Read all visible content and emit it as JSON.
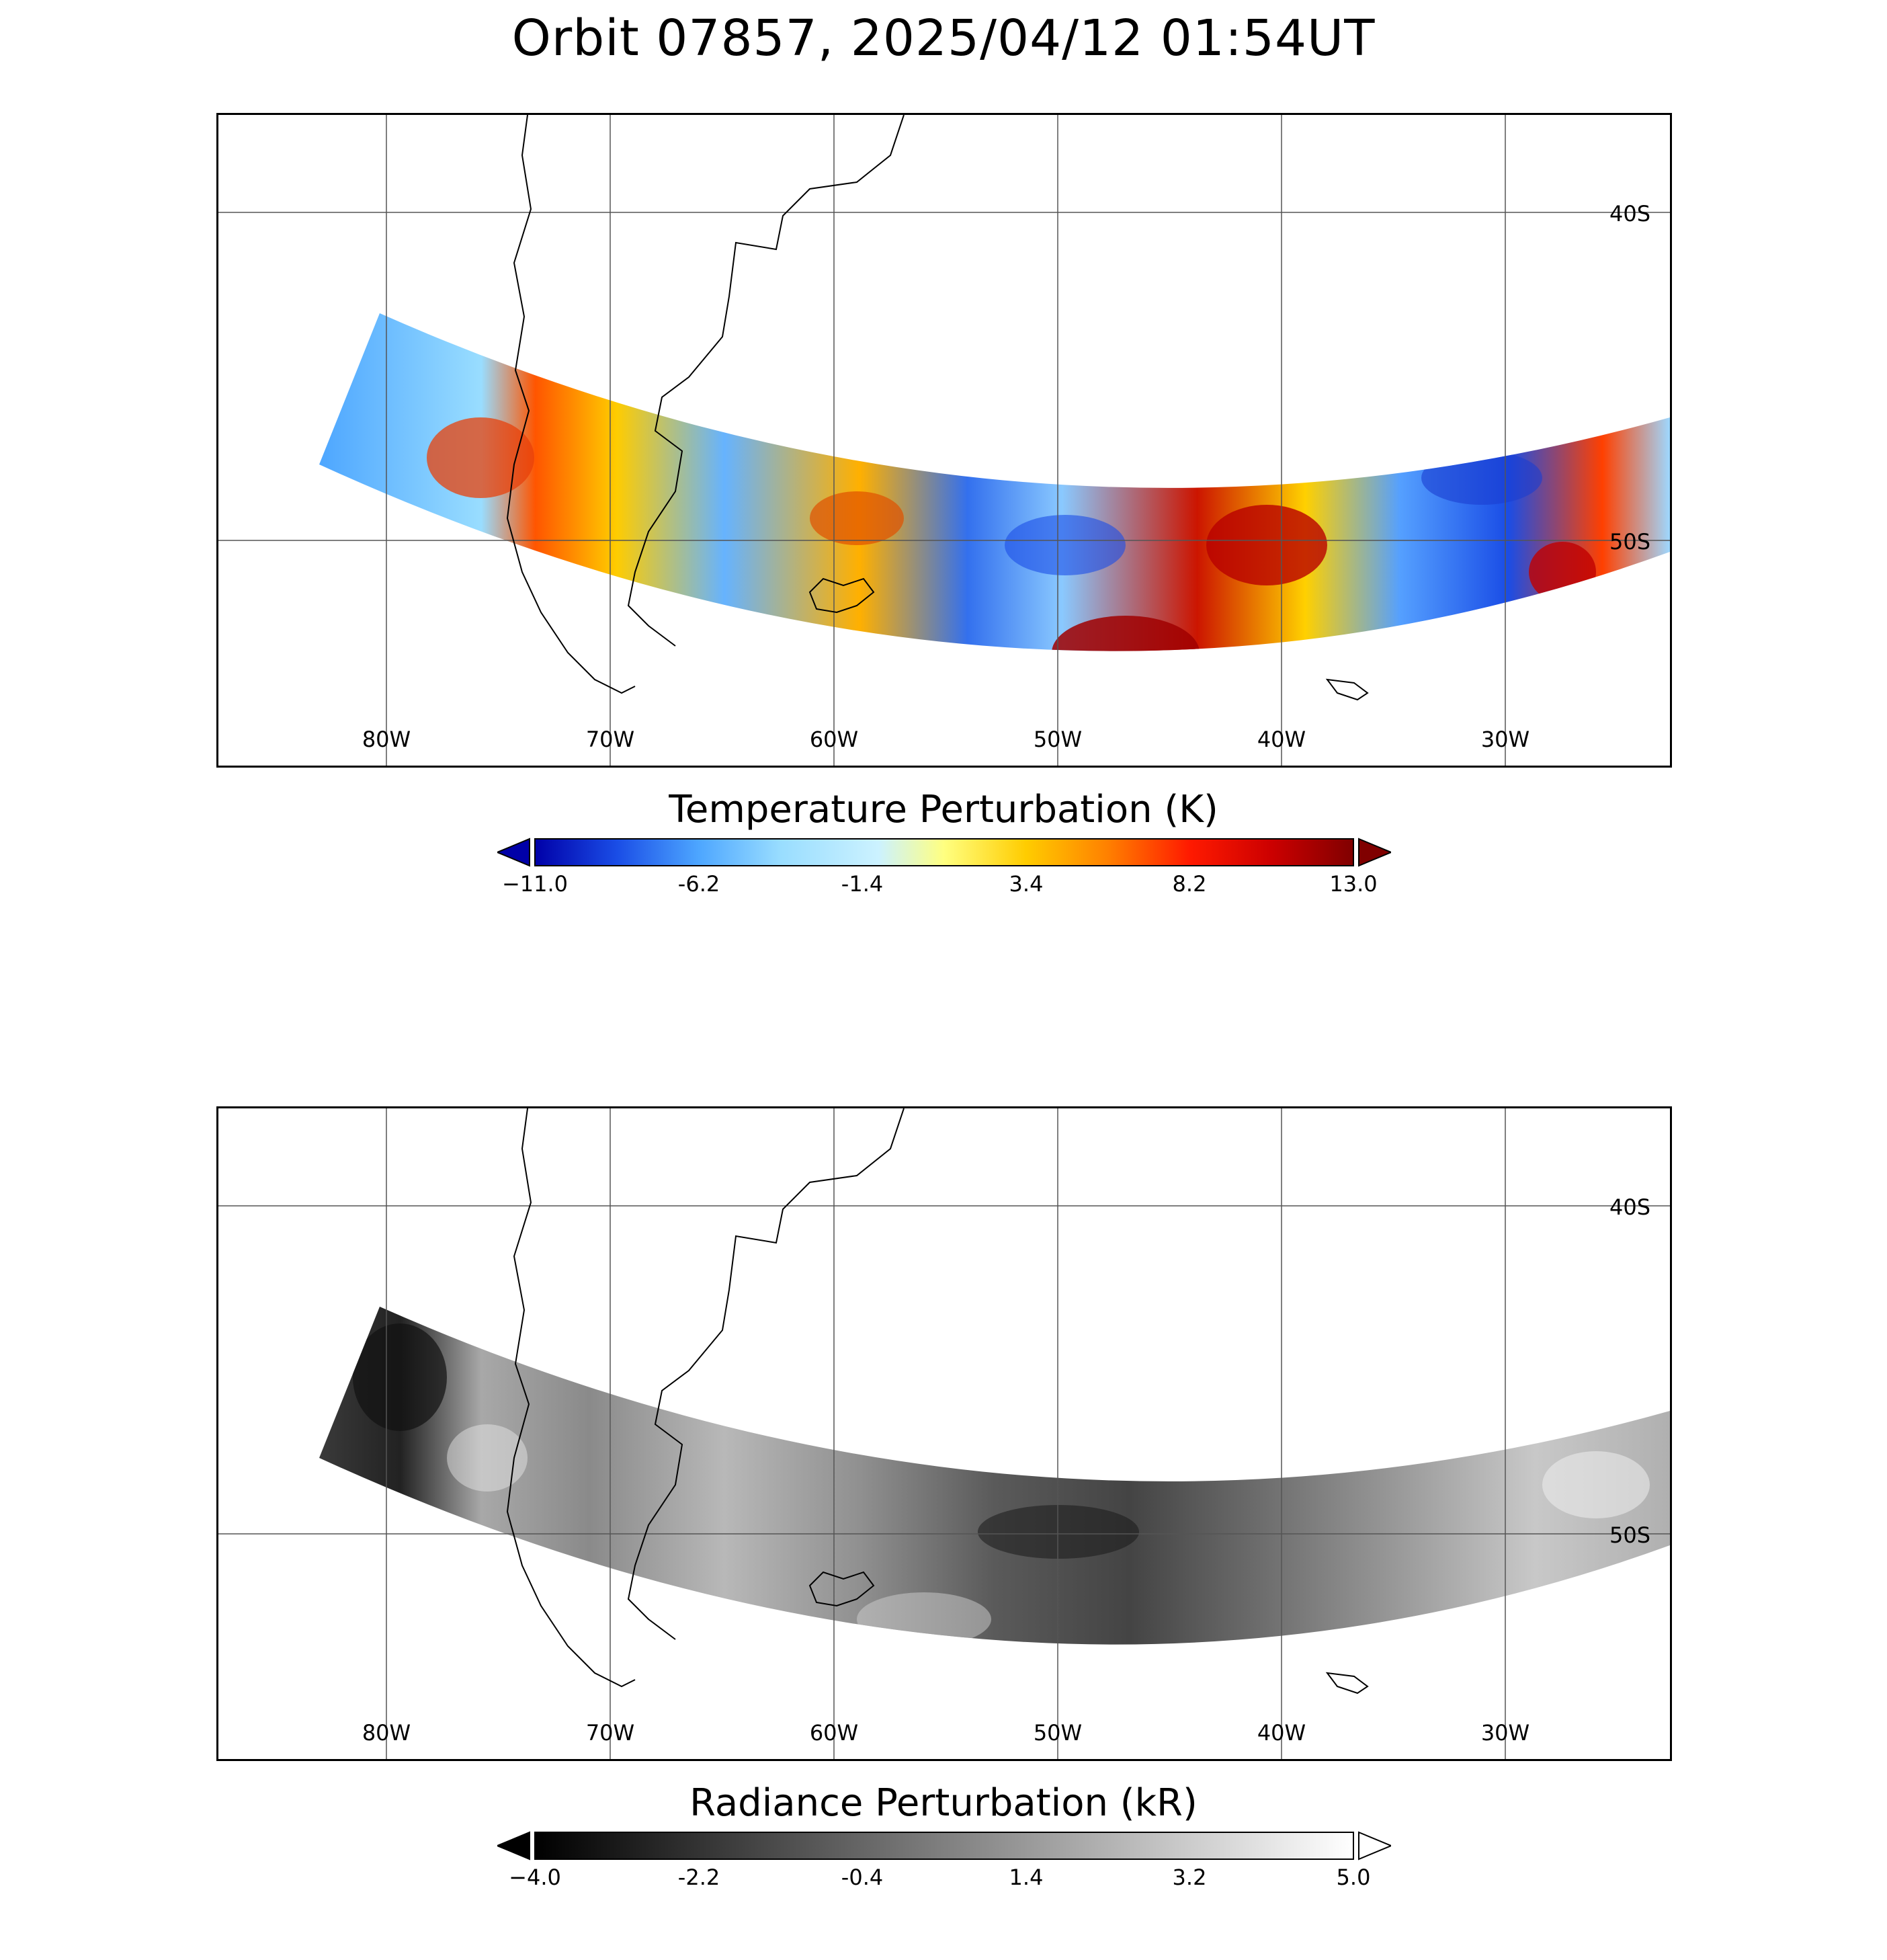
{
  "title": "Orbit 07857, 2025/04/12 01:54UT",
  "map": {
    "lon_labels": [
      "80W",
      "70W",
      "60W",
      "50W",
      "40W",
      "30W"
    ],
    "lat_labels": [
      "40S",
      "50S"
    ]
  },
  "panels": [
    {
      "id": "temperature",
      "colorbar_title": "Temperature Perturbation (K)",
      "colorbar_ticks": [
        "−11.0",
        "-6.2",
        "-1.4",
        "3.4",
        "8.2",
        "13.0"
      ],
      "colorbar_range": [
        -11.0,
        13.0
      ],
      "colormap": [
        "#0000a8",
        "#1a4de6",
        "#4da6ff",
        "#99ddff",
        "#ccf2ff",
        "#ffff80",
        "#ffcc00",
        "#ff8000",
        "#ff1a00",
        "#cc0000",
        "#800000"
      ],
      "extend_low_color": "#0000a8",
      "extend_high_color": "#800000"
    },
    {
      "id": "radiance",
      "colorbar_title": "Radiance Perturbation (kR)",
      "colorbar_ticks": [
        "−4.0",
        "-2.2",
        "-0.4",
        "1.4",
        "3.2",
        "5.0"
      ],
      "colorbar_range": [
        -4.0,
        5.0
      ],
      "colormap": [
        "#000000",
        "#333333",
        "#666666",
        "#999999",
        "#cccccc",
        "#ffffff"
      ],
      "extend_low_color": "#000000",
      "extend_high_color": "#ffffff"
    }
  ]
}
